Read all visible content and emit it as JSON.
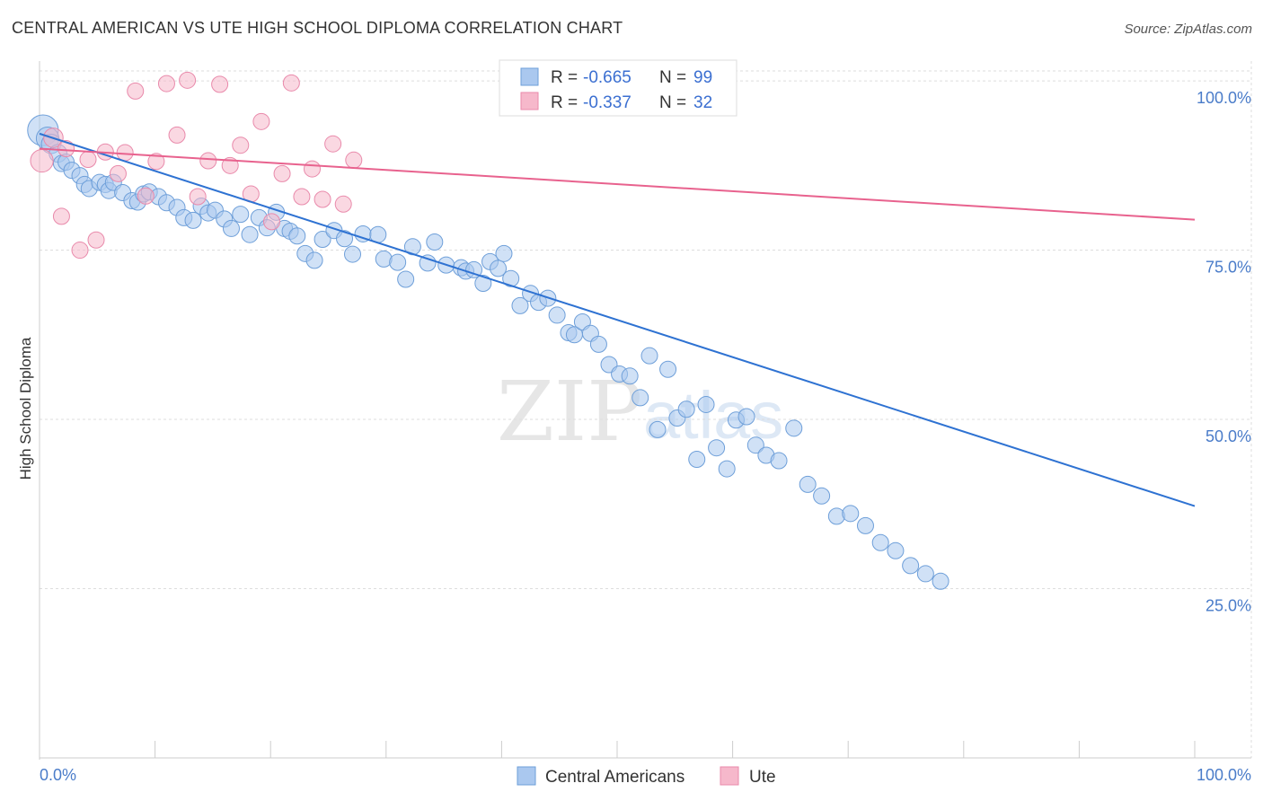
{
  "header": {
    "title": "CENTRAL AMERICAN VS UTE HIGH SCHOOL DIPLOMA CORRELATION CHART",
    "source": "Source: ZipAtlas.com"
  },
  "watermark": {
    "zip": "ZIP",
    "atlas": "atlas"
  },
  "colors": {
    "blue_fill": "#aac8ef",
    "blue_stroke": "#6e9fd9",
    "blue_line": "#2e72d2",
    "pink_fill": "#f6b8cb",
    "pink_stroke": "#e98aab",
    "pink_line": "#e8628e",
    "grid": "#dddddd",
    "tick_text": "#4a7cc9"
  },
  "stats": {
    "blue": {
      "r_label": "R =",
      "r_value": "-0.665",
      "n_label": "N =",
      "n_value": "99"
    },
    "pink": {
      "r_label": "R =",
      "r_value": "-0.337",
      "n_label": "N =",
      "n_value": "32"
    }
  },
  "chart_data": {
    "type": "scatter",
    "title": "CENTRAL AMERICAN VS UTE HIGH SCHOOL DIPLOMA CORRELATION CHART",
    "xlabel": "",
    "ylabel": "High School Diploma",
    "xlim": [
      0,
      100
    ],
    "ylim": [
      0,
      102
    ],
    "y_ticks": [
      {
        "value": 25,
        "label": "25.0%"
      },
      {
        "value": 50,
        "label": "50.0%"
      },
      {
        "value": 75,
        "label": "75.0%"
      },
      {
        "value": 100,
        "label": "100.0%"
      }
    ],
    "x_tick_labels": {
      "min": "0.0%",
      "max": "100.0%"
    },
    "legend": [
      "Central Americans",
      "Ute"
    ],
    "series": [
      {
        "name": "Central Americans",
        "trend": {
          "x": [
            0,
            100
          ],
          "y": [
            92.2,
            37.2
          ]
        },
        "points": [
          [
            0.3,
            92.7,
            1.9
          ],
          [
            0.7,
            91.5,
            1.4
          ],
          [
            1.0,
            90.7,
            1.2
          ],
          [
            1.6,
            89.3,
            1.1
          ],
          [
            1.9,
            87.8,
            1
          ],
          [
            2.3,
            88.0,
            1
          ],
          [
            2.8,
            86.8,
            1
          ],
          [
            3.5,
            86.0,
            1
          ],
          [
            3.9,
            84.7,
            1
          ],
          [
            4.3,
            84.1,
            1
          ],
          [
            5.2,
            85.0,
            1
          ],
          [
            5.7,
            84.7,
            1
          ],
          [
            6.0,
            83.8,
            1
          ],
          [
            6.4,
            85.0,
            1
          ],
          [
            7.2,
            83.5,
            1
          ],
          [
            8.0,
            82.3,
            1
          ],
          [
            8.5,
            82.1,
            1
          ],
          [
            9.0,
            83.3,
            1
          ],
          [
            9.5,
            83.6,
            1
          ],
          [
            10.3,
            82.9,
            1
          ],
          [
            11.0,
            82.0,
            1
          ],
          [
            11.9,
            81.3,
            1
          ],
          [
            12.5,
            79.8,
            1
          ],
          [
            13.3,
            79.4,
            1
          ],
          [
            14.0,
            81.5,
            1
          ],
          [
            14.6,
            80.5,
            1
          ],
          [
            15.2,
            80.9,
            1
          ],
          [
            16.0,
            79.6,
            1
          ],
          [
            16.6,
            78.2,
            1
          ],
          [
            17.4,
            80.3,
            1
          ],
          [
            18.2,
            77.3,
            1
          ],
          [
            19.0,
            79.8,
            1
          ],
          [
            19.7,
            78.3,
            1
          ],
          [
            20.5,
            80.6,
            1
          ],
          [
            21.2,
            78.2,
            1
          ],
          [
            21.7,
            77.8,
            1
          ],
          [
            22.3,
            77.1,
            1
          ],
          [
            23.0,
            74.5,
            1
          ],
          [
            23.8,
            73.5,
            1
          ],
          [
            24.5,
            76.6,
            1
          ],
          [
            25.5,
            77.9,
            1
          ],
          [
            26.4,
            76.7,
            1
          ],
          [
            27.1,
            74.4,
            1
          ],
          [
            28.0,
            77.4,
            1
          ],
          [
            29.3,
            77.3,
            1
          ],
          [
            29.8,
            73.7,
            1
          ],
          [
            31.0,
            73.2,
            1
          ],
          [
            31.7,
            70.7,
            1
          ],
          [
            32.3,
            75.5,
            1
          ],
          [
            33.6,
            73.1,
            1
          ],
          [
            34.2,
            76.2,
            1
          ],
          [
            35.2,
            72.8,
            1
          ],
          [
            36.5,
            72.4,
            1
          ],
          [
            36.9,
            71.9,
            1
          ],
          [
            37.6,
            72.1,
            1
          ],
          [
            38.4,
            70.1,
            1
          ],
          [
            39.0,
            73.3,
            1
          ],
          [
            39.7,
            72.3,
            1
          ],
          [
            40.2,
            74.5,
            1
          ],
          [
            40.8,
            70.8,
            1
          ],
          [
            41.6,
            66.8,
            1
          ],
          [
            42.5,
            68.6,
            1
          ],
          [
            43.2,
            67.3,
            1
          ],
          [
            44.0,
            67.9,
            1
          ],
          [
            44.8,
            65.4,
            1
          ],
          [
            45.8,
            62.8,
            1
          ],
          [
            46.3,
            62.5,
            1
          ],
          [
            47.0,
            64.4,
            1
          ],
          [
            47.7,
            62.7,
            1
          ],
          [
            48.4,
            61.1,
            1
          ],
          [
            49.3,
            58.1,
            1
          ],
          [
            50.2,
            56.7,
            1
          ],
          [
            51.1,
            56.4,
            1
          ],
          [
            52.0,
            53.2,
            1
          ],
          [
            52.8,
            59.4,
            1
          ],
          [
            53.5,
            48.5,
            1
          ],
          [
            54.4,
            57.4,
            1
          ],
          [
            55.2,
            50.2,
            1
          ],
          [
            56.0,
            51.5,
            1
          ],
          [
            56.9,
            44.1,
            1
          ],
          [
            57.7,
            52.2,
            1
          ],
          [
            58.6,
            45.8,
            1
          ],
          [
            59.5,
            42.7,
            1
          ],
          [
            60.3,
            49.9,
            1
          ],
          [
            61.2,
            50.4,
            1
          ],
          [
            62.0,
            46.2,
            1
          ],
          [
            62.9,
            44.7,
            1
          ],
          [
            64.0,
            43.9,
            1
          ],
          [
            65.3,
            48.7,
            1
          ],
          [
            66.5,
            40.4,
            1
          ],
          [
            67.7,
            38.7,
            1
          ],
          [
            69.0,
            35.7,
            1
          ],
          [
            70.2,
            36.1,
            1
          ],
          [
            71.5,
            34.3,
            1
          ],
          [
            72.8,
            31.8,
            1
          ],
          [
            74.1,
            30.6,
            1
          ],
          [
            75.4,
            28.4,
            1
          ],
          [
            76.7,
            27.2,
            1
          ],
          [
            78.0,
            26.1,
            1
          ]
        ]
      },
      {
        "name": "Ute",
        "trend": {
          "x": [
            0,
            100
          ],
          "y": [
            90.0,
            79.5
          ]
        },
        "points": [
          [
            0.2,
            88.2,
            1.4
          ],
          [
            1.2,
            91.6,
            1.2
          ],
          [
            1.9,
            80.0,
            1
          ],
          [
            2.3,
            90.0,
            1
          ],
          [
            3.5,
            75.0,
            1
          ],
          [
            4.2,
            88.4,
            1
          ],
          [
            4.9,
            76.5,
            1
          ],
          [
            5.7,
            89.5,
            1
          ],
          [
            6.8,
            86.3,
            1
          ],
          [
            7.4,
            89.4,
            1
          ],
          [
            8.3,
            98.5,
            1
          ],
          [
            9.2,
            83.0,
            1
          ],
          [
            10.1,
            88.1,
            1
          ],
          [
            11.0,
            99.6,
            1
          ],
          [
            11.9,
            92.0,
            1
          ],
          [
            12.8,
            100.1,
            1
          ],
          [
            13.7,
            82.9,
            1
          ],
          [
            14.6,
            88.2,
            1
          ],
          [
            15.6,
            99.5,
            1
          ],
          [
            16.5,
            87.5,
            1
          ],
          [
            17.4,
            90.5,
            1
          ],
          [
            18.3,
            83.3,
            1
          ],
          [
            19.2,
            94.0,
            1
          ],
          [
            20.1,
            79.2,
            1
          ],
          [
            21.0,
            86.3,
            1
          ],
          [
            21.8,
            99.7,
            1
          ],
          [
            22.7,
            82.9,
            1
          ],
          [
            23.6,
            87.0,
            1
          ],
          [
            24.5,
            82.5,
            1
          ],
          [
            25.4,
            90.7,
            1
          ],
          [
            26.3,
            81.8,
            1
          ],
          [
            27.2,
            88.3,
            1
          ]
        ]
      }
    ]
  },
  "legend_bottom": {
    "blue": "Central Americans",
    "pink": "Ute"
  }
}
